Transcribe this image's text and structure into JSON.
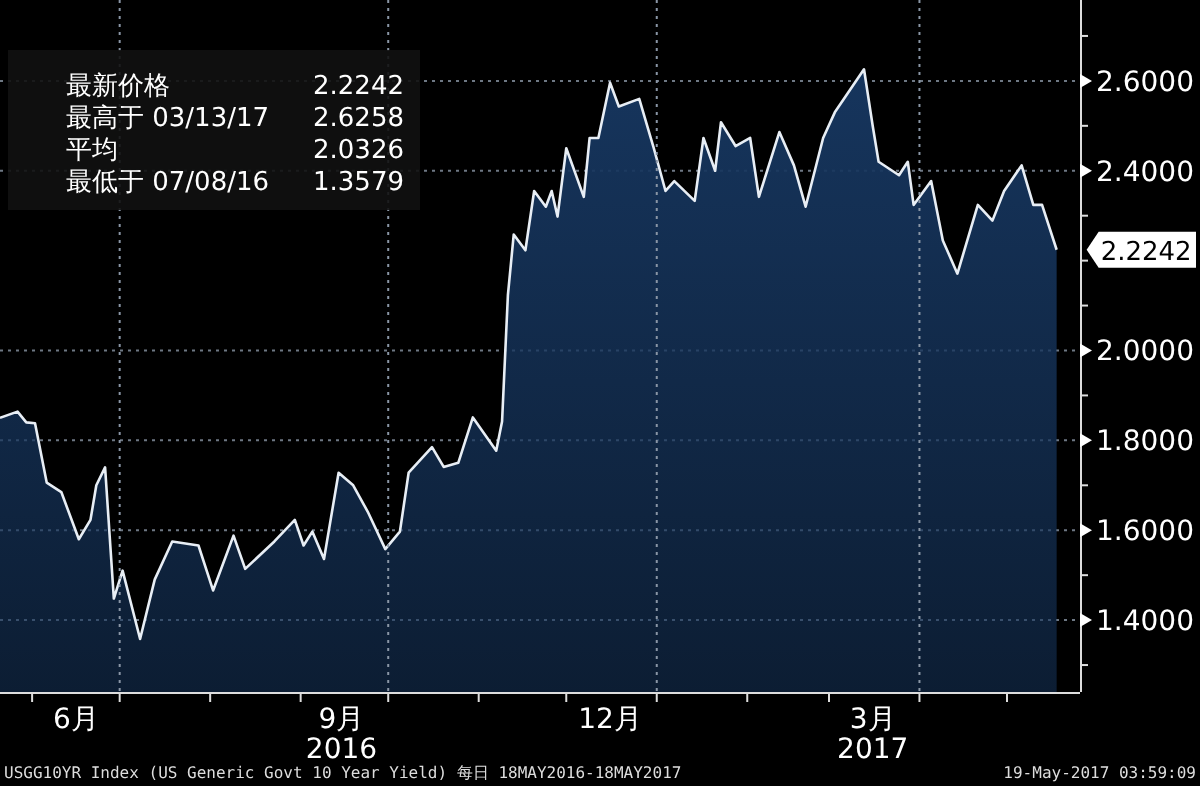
{
  "chart_data": {
    "type": "area",
    "x": [
      "2016-05-21",
      "2016-05-27",
      "2016-05-30",
      "2016-06-02",
      "2016-06-06",
      "2016-06-11",
      "2016-06-17",
      "2016-06-21",
      "2016-06-23",
      "2016-06-26",
      "2016-06-29",
      "2016-07-02",
      "2016-07-08",
      "2016-07-13",
      "2016-07-19",
      "2016-07-28",
      "2016-08-02",
      "2016-08-09",
      "2016-08-13",
      "2016-08-23",
      "2016-08-30",
      "2016-09-02",
      "2016-09-05",
      "2016-09-09",
      "2016-09-14",
      "2016-09-19",
      "2016-09-24",
      "2016-09-30",
      "2016-10-05",
      "2016-10-08",
      "2016-10-16",
      "2016-10-20",
      "2016-10-25",
      "2016-10-30",
      "2016-11-07",
      "2016-11-09",
      "2016-11-11",
      "2016-11-13",
      "2016-11-17",
      "2016-11-20",
      "2016-11-24",
      "2016-11-26",
      "2016-11-28",
      "2016-12-01",
      "2016-12-07",
      "2016-12-09",
      "2016-12-12",
      "2016-12-16",
      "2016-12-19",
      "2016-12-26",
      "2016-12-31",
      "2017-01-04",
      "2017-01-07",
      "2017-01-14",
      "2017-01-17",
      "2017-01-21",
      "2017-01-23",
      "2017-01-28",
      "2017-02-02",
      "2017-02-05",
      "2017-02-12",
      "2017-02-17",
      "2017-02-21",
      "2017-02-27",
      "2017-03-03",
      "2017-03-13",
      "2017-03-16",
      "2017-03-18",
      "2017-03-25",
      "2017-03-28",
      "2017-03-30",
      "2017-04-05",
      "2017-04-09",
      "2017-04-14",
      "2017-04-21",
      "2017-04-26",
      "2017-04-30",
      "2017-05-06",
      "2017-05-10",
      "2017-05-13",
      "2017-05-18"
    ],
    "series": [
      {
        "color": "#16355d",
        "values": [
          1.85,
          1.864,
          1.84,
          1.838,
          1.706,
          1.685,
          1.58,
          1.623,
          1.7,
          1.74,
          1.448,
          1.51,
          1.3579,
          1.49,
          1.575,
          1.566,
          1.466,
          1.588,
          1.514,
          1.575,
          1.623,
          1.566,
          1.597,
          1.536,
          1.728,
          1.7,
          1.641,
          1.558,
          1.597,
          1.728,
          1.785,
          1.741,
          1.75,
          1.851,
          1.777,
          1.842,
          2.123,
          2.258,
          2.223,
          2.355,
          2.32,
          2.355,
          2.298,
          2.45,
          2.342,
          2.473,
          2.473,
          2.596,
          2.543,
          2.56,
          2.45,
          2.355,
          2.377,
          2.333,
          2.473,
          2.4,
          2.508,
          2.455,
          2.473,
          2.342,
          2.486,
          2.412,
          2.32,
          2.473,
          2.53,
          2.6258,
          2.499,
          2.42,
          2.39,
          2.42,
          2.324,
          2.377,
          2.245,
          2.171,
          2.324,
          2.289,
          2.355,
          2.412,
          2.324,
          2.324,
          2.2242
        ]
      }
    ],
    "xlim": [
      "2016-05-21",
      "2017-05-26"
    ],
    "xticks": [
      {
        "value": "2016-06-01",
        "label": null
      },
      {
        "value": "2016-07-01",
        "label": null
      },
      {
        "value": "2016-08-01",
        "label": null
      },
      {
        "value": "2016-09-01",
        "label": null
      },
      {
        "value": "2016-10-01",
        "label": null
      },
      {
        "value": "2016-11-01",
        "label": null
      },
      {
        "value": "2016-12-01",
        "label": null
      },
      {
        "value": "2017-01-01",
        "label": null
      },
      {
        "value": "2017-02-01",
        "label": null
      },
      {
        "value": "2017-03-01",
        "label": null
      },
      {
        "value": "2017-04-01",
        "label": null
      },
      {
        "value": "2017-05-01",
        "label": null
      },
      {
        "value": "2016-06-16",
        "label": "6月"
      },
      {
        "value": "2016-09-15",
        "label": "9月\n2016"
      },
      {
        "value": "2016-12-16",
        "label": "12月"
      },
      {
        "value": "2017-03-16",
        "label": "3月\n2017"
      }
    ],
    "ylim": [
      1.24,
      2.78
    ],
    "yticks": [
      {
        "value": 1.3,
        "label": null
      },
      {
        "value": 1.4,
        "label": "1.4000"
      },
      {
        "value": 1.5,
        "label": null
      },
      {
        "value": 1.6,
        "label": "1.6000"
      },
      {
        "value": 1.7,
        "label": null
      },
      {
        "value": 1.8,
        "label": "1.8000"
      },
      {
        "value": 1.9,
        "label": null
      },
      {
        "value": 2.0,
        "label": "2.0000"
      },
      {
        "value": 2.1,
        "label": null
      },
      {
        "value": 2.2,
        "label": null
      },
      {
        "value": 2.3,
        "label": null
      },
      {
        "value": 2.4,
        "label": "2.4000"
      },
      {
        "value": 2.5,
        "label": null
      },
      {
        "value": 2.6,
        "label": "2.6000"
      },
      {
        "value": 2.7,
        "label": null
      }
    ],
    "grid": "y",
    "ref_lines": [
      {
        "axis": "x",
        "value": "2016-07-01",
        "line_style": "dotted",
        "color": "#8a96a6"
      },
      {
        "axis": "x",
        "value": "2016-10-01",
        "line_style": "dotted",
        "color": "#8a96a6"
      },
      {
        "axis": "x",
        "value": "2017-01-01",
        "line_style": "dotted",
        "color": "#8a96a6"
      },
      {
        "axis": "x",
        "value": "2017-04-01",
        "line_style": "dotted",
        "color": "#8a96a6"
      }
    ],
    "annotations": [
      "最新价格 2.2242",
      "最高于 03/13/17 2.6258",
      "平均 2.0326",
      "最低于 07/08/16 1.3579",
      {
        "text": "2.2242",
        "x": "2017-05-18",
        "y": 2.2242
      },
      "USGG10YR Index (US Generic Govt 10 Year Yield) 每日 18MAY2016-18MAY2017",
      "19-May-2017 03:59:09"
    ]
  }
}
